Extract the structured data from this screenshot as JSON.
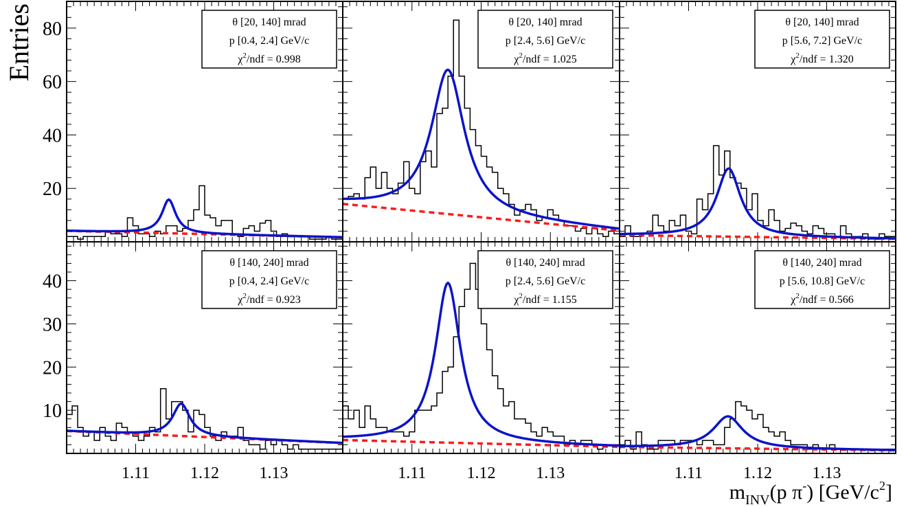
{
  "figure": {
    "ylabel": "Entries",
    "xlabel_main": "m",
    "xlabel_sub": "INV",
    "xlabel_mid": "(p π",
    "xlabel_sup": "-",
    "xlabel_end": ") [GeV/c",
    "xlabel_sup2": "2",
    "xlabel_close": "]"
  },
  "axes": {
    "top_yticks": [
      20,
      40,
      60,
      80
    ],
    "bottom_yticks": [
      10,
      20,
      30,
      40
    ],
    "xticks": [
      "1.11",
      "1.12",
      "1.13"
    ],
    "xlim": [
      1.1,
      1.14
    ]
  },
  "chart_data": [
    {
      "type": "line",
      "title": "θ [20, 140] mrad | p [0.4, 2.4] GeV/c",
      "legend": {
        "theta": "θ [20, 140] mrad",
        "p": "p [0.4, 2.4] GeV/c",
        "chi_pre": "χ",
        "chi_sup": "2",
        "chi_post": "/ndf = 0.998"
      },
      "xlim": [
        1.1,
        1.14
      ],
      "ylim": [
        0,
        90
      ],
      "hist_start": 1.1,
      "bin_width": 0.0008,
      "hist": [
        2,
        2,
        1,
        2,
        2,
        2,
        2,
        4,
        3,
        3,
        2,
        9,
        6,
        3,
        3,
        2,
        4,
        3,
        6,
        6,
        4,
        5,
        8,
        12,
        21,
        10,
        9,
        6,
        8,
        8,
        3,
        2,
        5,
        6,
        4,
        7,
        8,
        4,
        2,
        3,
        2,
        2,
        2,
        2,
        1,
        1,
        1,
        2,
        1,
        1
      ],
      "series": [
        {
          "role": "fit",
          "color": "#0a14c8",
          "bg": [
            4.1,
            -0.06
          ],
          "peak": {
            "mu": 1.1148,
            "amp": 12.6,
            "gamma": 0.0012
          }
        },
        {
          "role": "background",
          "color": "#ff1a1a",
          "bg": [
            4.1,
            -0.06
          ]
        }
      ]
    },
    {
      "type": "line",
      "title": "θ [20, 140] mrad | p [2.4, 5.6] GeV/c",
      "legend": {
        "theta": "θ [20, 140] mrad",
        "p": "p [2.4, 5.6] GeV/c",
        "chi_pre": "χ",
        "chi_sup": "2",
        "chi_post": "/ndf = 1.025"
      },
      "xlim": [
        1.1,
        1.14
      ],
      "ylim": [
        0,
        90
      ],
      "hist_start": 1.1,
      "bin_width": 0.0008,
      "hist": [
        16,
        17,
        18,
        16,
        24,
        28,
        20,
        26,
        20,
        18,
        22,
        30,
        20,
        18,
        30,
        34,
        28,
        48,
        50,
        62,
        83,
        62,
        50,
        42,
        36,
        32,
        28,
        26,
        20,
        18,
        14,
        10,
        12,
        14,
        12,
        8,
        9,
        12,
        10,
        8,
        6,
        6,
        4,
        5,
        3,
        5,
        3,
        2,
        4,
        3
      ],
      "series": [
        {
          "role": "fit",
          "color": "#0a14c8",
          "bg": [
            14.2,
            -0.25
          ],
          "peak": {
            "mu": 1.1152,
            "amp": 54,
            "gamma": 0.0029
          }
        },
        {
          "role": "background",
          "color": "#ff1a1a",
          "bg": [
            14.2,
            -0.25
          ]
        }
      ]
    },
    {
      "type": "line",
      "title": "θ [20, 140] mrad | p [5.6, 7.2] GeV/c",
      "legend": {
        "theta": "θ [20, 140] mrad",
        "p": "p [5.6, 7.2] GeV/c",
        "chi_pre": "χ",
        "chi_sup": "2",
        "chi_post": "/ndf = 1.320"
      },
      "xlim": [
        1.1,
        1.14
      ],
      "ylim": [
        0,
        90
      ],
      "hist_start": 1.1,
      "bin_width": 0.0008,
      "hist": [
        2,
        6,
        2,
        2,
        3,
        4,
        10,
        6,
        4,
        8,
        6,
        10,
        4,
        3,
        16,
        12,
        18,
        36,
        25,
        34,
        24,
        22,
        20,
        12,
        18,
        8,
        6,
        12,
        8,
        4,
        5,
        7,
        6,
        4,
        3,
        6,
        5,
        3,
        3,
        2,
        6,
        3,
        2,
        2,
        3,
        1,
        1,
        3,
        2,
        2
      ],
      "series": [
        {
          "role": "fit",
          "color": "#0a14c8",
          "bg": [
            2.5,
            -0.035
          ],
          "peak": {
            "mu": 1.1158,
            "amp": 25.5,
            "gamma": 0.0021
          }
        },
        {
          "role": "background",
          "color": "#ff1a1a",
          "bg": [
            2.5,
            -0.035
          ]
        }
      ]
    },
    {
      "type": "line",
      "title": "θ [140, 240] mrad | p [0.4, 2.4] GeV/c",
      "legend": {
        "theta": "θ [140, 240] mrad",
        "p": "p [0.4, 2.4] GeV/c",
        "chi_pre": "χ",
        "chi_sup": "2",
        "chi_post": "/ndf = 0.923"
      },
      "xlim": [
        1.1,
        1.14
      ],
      "ylim": [
        0,
        49
      ],
      "hist_start": 1.1,
      "bin_width": 0.0008,
      "hist": [
        9,
        11,
        6,
        4,
        5,
        3,
        6,
        4,
        3,
        7,
        6,
        5,
        4,
        3,
        4,
        6,
        5,
        15,
        8,
        12,
        12,
        10,
        5,
        10,
        9,
        6,
        4,
        3,
        5,
        4,
        4,
        6,
        3,
        2,
        2,
        1,
        3,
        2,
        3,
        2,
        1,
        2,
        1,
        1,
        1,
        1,
        1,
        1,
        1,
        1
      ],
      "series": [
        {
          "role": "fit",
          "color": "#0a14c8",
          "bg": [
            5.2,
            -0.07
          ],
          "peak": {
            "mu": 1.1166,
            "amp": 7.5,
            "gamma": 0.0015
          }
        },
        {
          "role": "background",
          "color": "#ff1a1a",
          "bg": [
            5.2,
            -0.07
          ]
        }
      ]
    },
    {
      "type": "line",
      "title": "θ [140, 240] mrad | p [2.4, 5.6] GeV/c",
      "legend": {
        "theta": "θ [140, 240] mrad",
        "p": "p [2.4, 5.6] GeV/c",
        "chi_pre": "χ",
        "chi_sup": "2",
        "chi_post": "/ndf = 1.155"
      },
      "xlim": [
        1.1,
        1.14
      ],
      "ylim": [
        0,
        49
      ],
      "hist_start": 1.1,
      "bin_width": 0.0008,
      "hist": [
        11,
        8,
        10,
        6,
        11,
        8,
        6,
        6,
        5,
        5,
        5,
        4,
        5,
        10,
        10,
        10,
        11,
        14,
        19,
        20,
        27,
        34,
        38,
        44,
        38,
        30,
        24,
        18,
        15,
        11,
        12,
        8,
        8,
        7,
        5,
        4,
        6,
        5,
        4,
        4,
        2,
        3,
        2,
        3,
        3,
        2,
        1,
        2,
        2,
        2
      ],
      "series": [
        {
          "role": "fit",
          "color": "#0a14c8",
          "bg": [
            3.1,
            -0.04
          ],
          "peak": {
            "mu": 1.1152,
            "amp": 37,
            "gamma": 0.0022
          }
        },
        {
          "role": "background",
          "color": "#ff1a1a",
          "bg": [
            3.1,
            -0.04
          ]
        }
      ]
    },
    {
      "type": "line",
      "title": "θ [140, 240] mrad | p [5.6, 10.8] GeV/c",
      "legend": {
        "theta": "θ [140, 240] mrad",
        "p": "p [5.6, 10.8] GeV/c",
        "chi_pre": "χ",
        "chi_sup": "2",
        "chi_post": "/ndf = 0.566"
      },
      "xlim": [
        1.1,
        1.14
      ],
      "ylim": [
        0,
        49
      ],
      "hist_start": 1.1,
      "bin_width": 0.0008,
      "hist": [
        2,
        3,
        1,
        5,
        2,
        1,
        1,
        3,
        3,
        3,
        2,
        3,
        3,
        3,
        2,
        3,
        3,
        2,
        2,
        6,
        8,
        12,
        11,
        10,
        8,
        9,
        6,
        5,
        4,
        5,
        3,
        2,
        2,
        2,
        1,
        2,
        1,
        1,
        2,
        1,
        1,
        1,
        1,
        1,
        1,
        1,
        1,
        1,
        1,
        1
      ],
      "series": [
        {
          "role": "fit",
          "color": "#0a14c8",
          "bg": [
            1.5,
            -0.02
          ],
          "peak": {
            "mu": 1.1157,
            "amp": 7.4,
            "gamma": 0.0026
          }
        },
        {
          "role": "background",
          "color": "#ff1a1a",
          "bg": [
            1.5,
            -0.02
          ]
        }
      ]
    }
  ]
}
